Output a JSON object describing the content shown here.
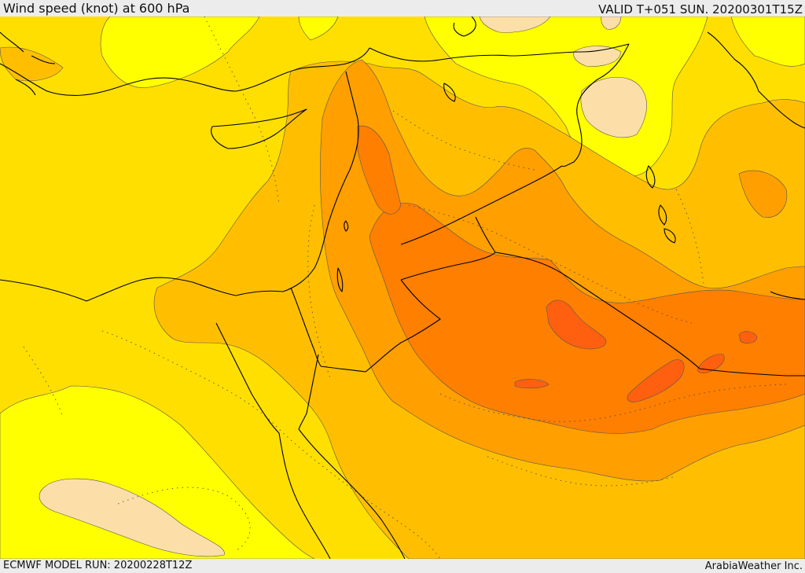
{
  "header": {
    "title": "Wind speed (knot) at 600 hPa",
    "valid_time": "VALID T+051 SUN. 20200301T15Z"
  },
  "footer": {
    "model_run": "ECMWF MODEL RUN: 20200228T12Z",
    "credit": "ArabiaWeather Inc."
  },
  "map": {
    "fill_colors": {
      "pale": "#fcdfa8",
      "yellow": "#ffff00",
      "gold": "#ffdf00",
      "amber": "#ffbf00",
      "orange": "#ff9f00",
      "dark_orange": "#ff7f00",
      "red_orange": "#ff6010"
    },
    "line_colors": {
      "coastline_border": "#000000",
      "contour": "#555555"
    }
  }
}
